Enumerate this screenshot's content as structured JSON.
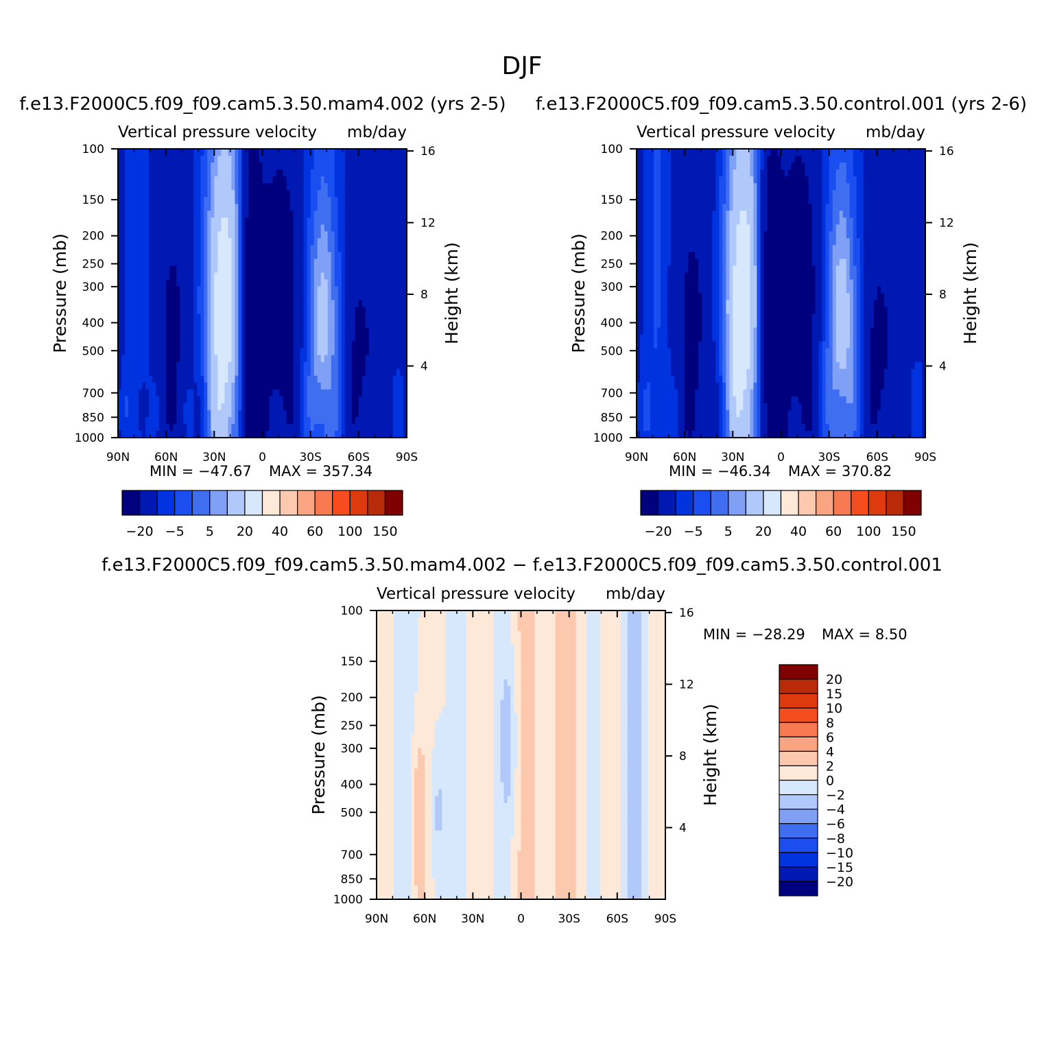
{
  "figure": {
    "season_title": "DJF"
  },
  "chart_data": [
    {
      "type": "heatmap",
      "id": "left",
      "title": "f.e13.F2000C5.f09_f09.cam5.3.50.mam4.002 (yrs 2-5)",
      "variable": "Vertical pressure velocity",
      "units": "mb/day",
      "ylabel": "Pressure (mb)",
      "y2label": "Height (km)",
      "x_ticks": [
        "90N",
        "60N",
        "30N",
        "0",
        "30S",
        "60S",
        "90S"
      ],
      "y_ticks": [
        "100",
        "150",
        "200",
        "250",
        "300",
        "400",
        "500",
        "700",
        "850",
        "1000"
      ],
      "y2_ticks": [
        "16",
        "12",
        "8",
        "4"
      ],
      "min_label": "MIN = −47.67",
      "max_label": "MAX = 357.34",
      "colorbar_labels": [
        "−20",
        "−5",
        "5",
        "20",
        "40",
        "60",
        "100",
        "150"
      ],
      "colors": [
        "#00007f",
        "#0019b2",
        "#0033e0",
        "#1a4ef0",
        "#3f6ef0",
        "#7fa0f5",
        "#b0c8fa",
        "#d8e8fc",
        "#fee8d8",
        "#fcc8ae",
        "#faa582",
        "#f77a52",
        "#f54d1e",
        "#dd3a0e",
        "#b82a08",
        "#7f0000"
      ]
    },
    {
      "type": "heatmap",
      "id": "right",
      "title": "f.e13.F2000C5.f09_f09.cam5.3.50.control.001 (yrs 2-6)",
      "variable": "Vertical pressure velocity",
      "units": "mb/day",
      "ylabel": "Pressure (mb)",
      "y2label": "Height (km)",
      "x_ticks": [
        "90N",
        "60N",
        "30N",
        "0",
        "30S",
        "60S",
        "90S"
      ],
      "y_ticks": [
        "100",
        "150",
        "200",
        "250",
        "300",
        "400",
        "500",
        "700",
        "850",
        "1000"
      ],
      "y2_ticks": [
        "16",
        "12",
        "8",
        "4"
      ],
      "min_label": "MIN = −46.34",
      "max_label": "MAX = 370.82",
      "colorbar_labels": [
        "−20",
        "−5",
        "5",
        "20",
        "40",
        "60",
        "100",
        "150"
      ],
      "colors": [
        "#00007f",
        "#0019b2",
        "#0033e0",
        "#1a4ef0",
        "#3f6ef0",
        "#7fa0f5",
        "#b0c8fa",
        "#d8e8fc",
        "#fee8d8",
        "#fcc8ae",
        "#faa582",
        "#f77a52",
        "#f54d1e",
        "#dd3a0e",
        "#b82a08",
        "#7f0000"
      ]
    },
    {
      "type": "heatmap",
      "id": "diff",
      "title": "f.e13.F2000C5.f09_f09.cam5.3.50.mam4.002 − f.e13.F2000C5.f09_f09.cam5.3.50.control.001",
      "variable": "Vertical pressure velocity",
      "units": "mb/day",
      "ylabel": "Pressure (mb)",
      "y2label": "Height (km)",
      "x_ticks": [
        "90N",
        "60N",
        "30N",
        "0",
        "30S",
        "60S",
        "90S"
      ],
      "y_ticks": [
        "100",
        "150",
        "200",
        "250",
        "300",
        "400",
        "500",
        "700",
        "850",
        "1000"
      ],
      "y2_ticks": [
        "16",
        "12",
        "8",
        "4"
      ],
      "min_label": "MIN = −28.29",
      "max_label": "MAX =     8.50",
      "colorbar_labels": [
        "20",
        "15",
        "10",
        "8",
        "6",
        "4",
        "2",
        "0",
        "−2",
        "−4",
        "−6",
        "−8",
        "−10",
        "−15",
        "−20"
      ],
      "colors": [
        "#7f0000",
        "#b82a08",
        "#dd3a0e",
        "#f54d1e",
        "#f77a52",
        "#faa582",
        "#fcc8ae",
        "#fee8d8",
        "#d8e8fc",
        "#b0c8fa",
        "#7fa0f5",
        "#3f6ef0",
        "#1a4ef0",
        "#0033e0",
        "#0019b2",
        "#00007f"
      ]
    }
  ]
}
